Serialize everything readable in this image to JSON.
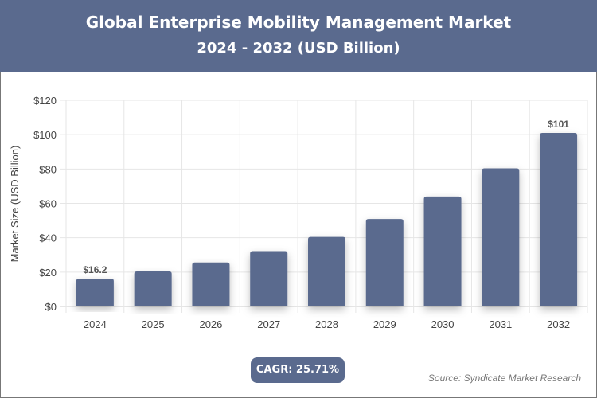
{
  "header": {
    "title": "Global Enterprise Mobility Management Market",
    "subtitle": "2024 - 2032 (USD Billion)"
  },
  "chart_data": {
    "type": "bar",
    "title": "Global Enterprise Mobility Management Market",
    "subtitle": "2024 - 2032 (USD Billion)",
    "xlabel": "",
    "ylabel": "Market Size (USD Billion)",
    "categories": [
      "2024",
      "2025",
      "2026",
      "2027",
      "2028",
      "2029",
      "2030",
      "2031",
      "2032"
    ],
    "values": [
      16.2,
      20.4,
      25.6,
      32.2,
      40.5,
      50.9,
      64.0,
      80.4,
      101
    ],
    "data_labels": {
      "0": "$16.2",
      "8": "$101"
    },
    "ylim": [
      0,
      120
    ],
    "yticks": [
      0,
      20,
      40,
      60,
      80,
      100,
      120
    ],
    "ytick_labels": [
      "$0",
      "$20",
      "$40",
      "$60",
      "$80",
      "$100",
      "$120"
    ],
    "grid": true,
    "bar_color": "#5a6a8e"
  },
  "footer": {
    "cagr": "CAGR: 25.71%",
    "source": "Source: Syndicate Market Research"
  }
}
